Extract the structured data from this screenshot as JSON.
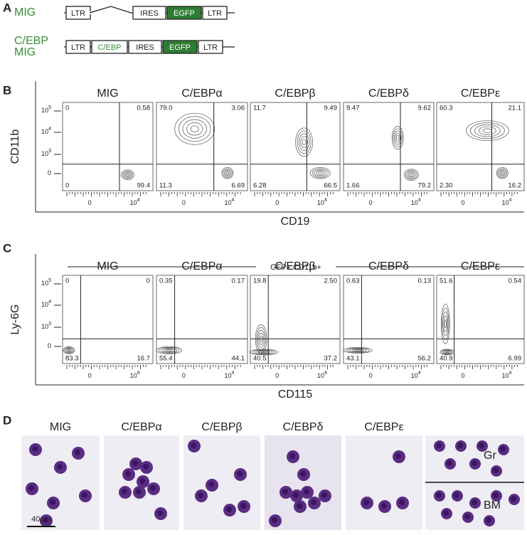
{
  "panel_a": {
    "label": "A",
    "constructs": [
      {
        "name_lines": [
          "MIG"
        ],
        "elements": [
          "LTR",
          "IRES",
          "EGFP",
          "LTR"
        ]
      },
      {
        "name_lines": [
          "C/EBP",
          "MIG"
        ],
        "elements": [
          "LTR",
          "C/EBP",
          "IRES",
          "EGFP",
          "LTR"
        ]
      }
    ]
  },
  "panel_b": {
    "label": "B",
    "y_label": "CD11b",
    "x_label": "CD19",
    "y_ticks": [
      {
        "base": "10",
        "exp": "5"
      },
      {
        "base": "10",
        "exp": "4"
      },
      {
        "base": "10",
        "exp": "3"
      },
      {
        "base": "0"
      }
    ],
    "x_ticks": [
      {
        "base": "0"
      },
      {
        "base": "10",
        "exp": "4"
      }
    ],
    "plots": [
      {
        "title": "MIG",
        "quadrants": [
          "0",
          "0.58",
          "0",
          "99.4"
        ]
      },
      {
        "title": "C/EBPα",
        "quadrants": [
          "79.0",
          "3.06",
          "11.3",
          "6.69"
        ]
      },
      {
        "title": "C/EBPβ",
        "quadrants": [
          "11.7",
          "9.49",
          "6.28",
          "66.5"
        ]
      },
      {
        "title": "C/EBPδ",
        "quadrants": [
          "9.47",
          "9.62",
          "1.66",
          "79.2"
        ]
      },
      {
        "title": "C/EBPε",
        "quadrants": [
          "60.3",
          "21.1",
          "2.30",
          "16.2"
        ]
      }
    ]
  },
  "panel_c": {
    "label": "C",
    "gate": "GFP+ CD11b+",
    "y_label": "Ly-6G",
    "x_label": "CD115",
    "y_ticks": [
      {
        "base": "10",
        "exp": "5"
      },
      {
        "base": "10",
        "exp": "4"
      },
      {
        "base": "10",
        "exp": "3"
      },
      {
        "base": "0"
      }
    ],
    "x_ticks": [
      {
        "base": "0"
      },
      {
        "base": "10",
        "exp": "4"
      }
    ],
    "plots": [
      {
        "title": "MIG",
        "quadrants": [
          "0",
          "0",
          "83.3",
          "16.7"
        ]
      },
      {
        "title": "C/EBPα",
        "quadrants": [
          "0.35",
          "0.17",
          "55.4",
          "44.1"
        ]
      },
      {
        "title": "C/EBPβ",
        "quadrants": [
          "19.8",
          "2.50",
          "40.5",
          "37.2"
        ]
      },
      {
        "title": "C/EBPδ",
        "quadrants": [
          "0.63",
          "0.13",
          "43.1",
          "56.2"
        ]
      },
      {
        "title": "C/EBPε",
        "quadrants": [
          "51.6",
          "0.54",
          "40.9",
          "6.99"
        ]
      }
    ]
  },
  "panel_d": {
    "label": "D",
    "titles": [
      "MIG",
      "C/EBPα",
      "C/EBPβ",
      "C/EBPδ",
      "C/EBPε"
    ],
    "scale_bar": "40µm",
    "inset_labels": [
      "Gr",
      "BM"
    ]
  }
}
